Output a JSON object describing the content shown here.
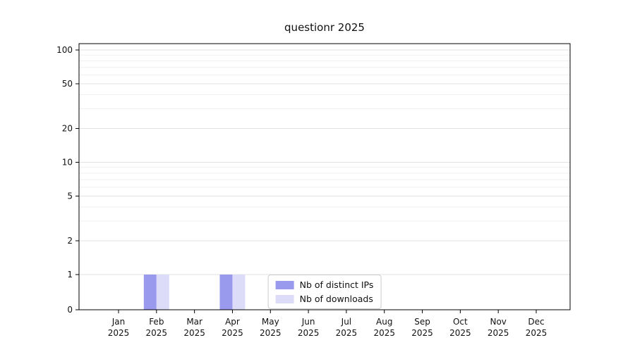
{
  "chart_data": {
    "type": "bar",
    "title": "questionr 2025",
    "x_months": [
      "Jan",
      "Feb",
      "Mar",
      "Apr",
      "May",
      "Jun",
      "Jul",
      "Aug",
      "Sep",
      "Oct",
      "Nov",
      "Dec"
    ],
    "x_years": [
      "2025",
      "2025",
      "2025",
      "2025",
      "2025",
      "2025",
      "2025",
      "2025",
      "2025",
      "2025",
      "2025",
      "2025"
    ],
    "series": [
      {
        "name": "Nb of distinct IPs",
        "color": "#9999ee",
        "values": [
          0,
          1,
          0,
          1,
          0,
          0,
          0,
          0,
          0,
          0,
          0,
          0
        ]
      },
      {
        "name": "Nb of downloads",
        "color": "#dcdcf8",
        "values": [
          0,
          1,
          0,
          1,
          0,
          0,
          0,
          0,
          0,
          0,
          0,
          0
        ]
      }
    ],
    "yscale": "symlog",
    "yticks": [
      0,
      1,
      2,
      5,
      10,
      20,
      50,
      100
    ],
    "minor_yticks": [
      3,
      4,
      6,
      7,
      8,
      9,
      30,
      40,
      60,
      70,
      80,
      90
    ],
    "ylim": [
      0,
      110
    ],
    "grid": true,
    "grid_color_major": "#e2e2e2",
    "grid_color_minor": "#efefef",
    "axis_color": "#000000",
    "legend_position": "lower-center",
    "legend_entries": [
      "Nb of distinct IPs",
      "Nb of downloads"
    ]
  }
}
